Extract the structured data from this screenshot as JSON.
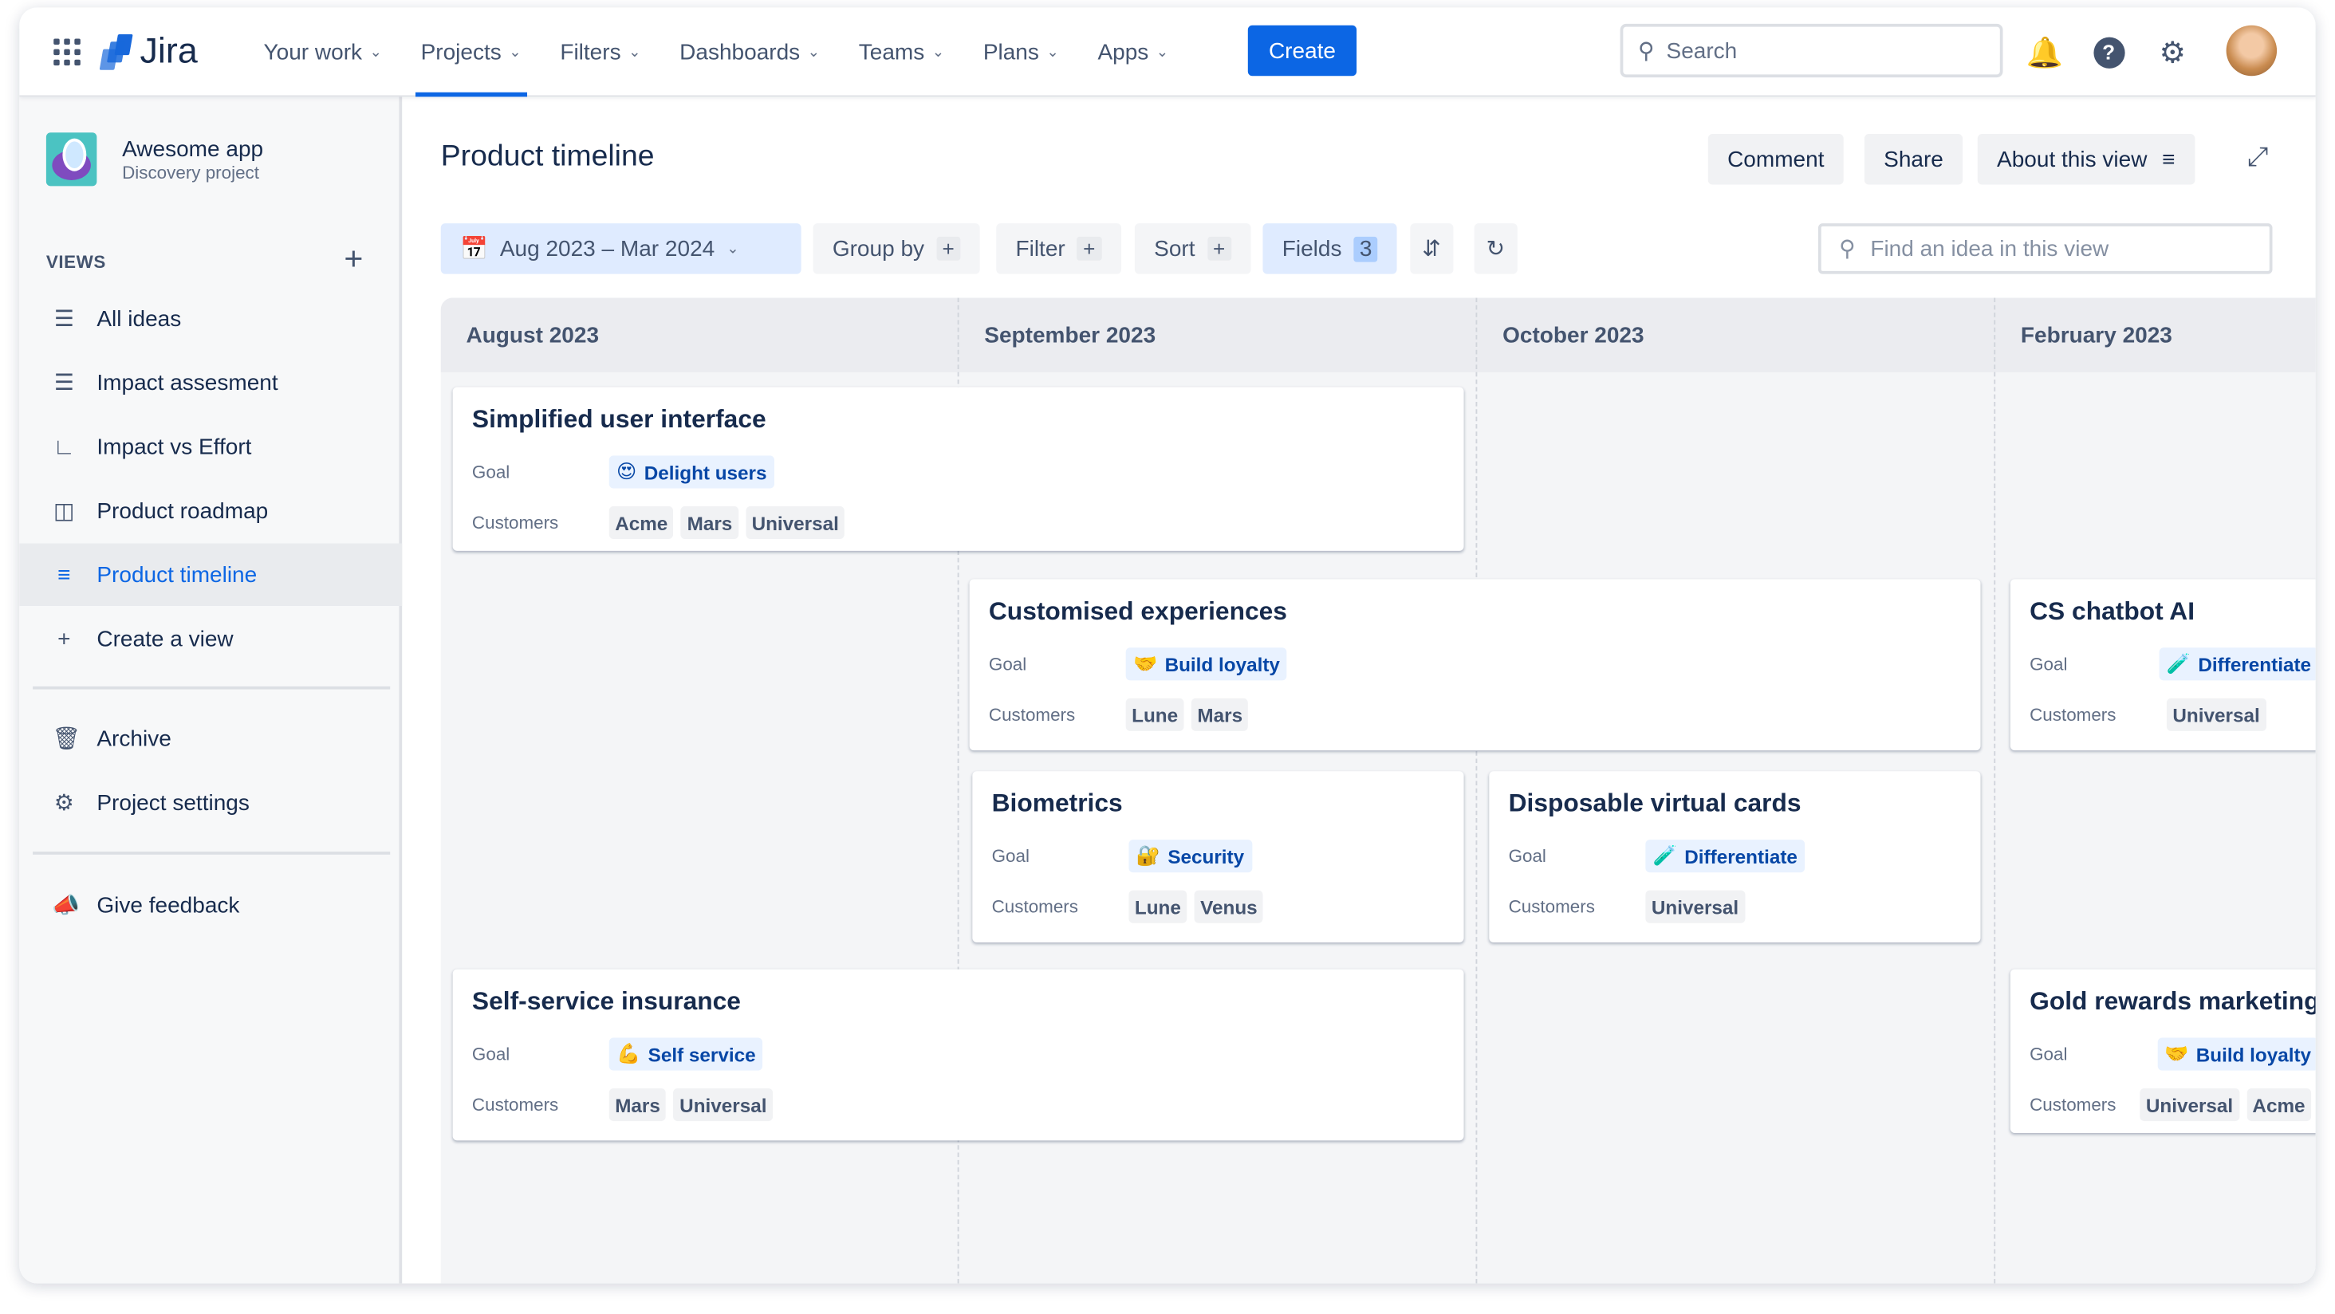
{
  "nav": {
    "app_name": "Jira",
    "menu": [
      "Your work",
      "Projects",
      "Filters",
      "Dashboards",
      "Teams",
      "Plans",
      "Apps"
    ],
    "active_menu": "Projects",
    "create_label": "Create",
    "search_placeholder": "Search"
  },
  "sidebar": {
    "project_name": "Awesome app",
    "project_type": "Discovery project",
    "views_heading": "VIEWS",
    "items": [
      {
        "label": "All ideas",
        "icon": "list-icon"
      },
      {
        "label": "Impact assesment",
        "icon": "list-icon"
      },
      {
        "label": "Impact vs Effort",
        "icon": "matrix-icon"
      },
      {
        "label": "Product roadmap",
        "icon": "board-icon"
      },
      {
        "label": "Product timeline",
        "icon": "timeline-icon",
        "selected": true
      },
      {
        "label": "Create a view",
        "icon": "plus-icon"
      }
    ],
    "secondary": [
      {
        "label": "Archive",
        "icon": "trash-icon"
      },
      {
        "label": "Project settings",
        "icon": "gear-icon"
      }
    ],
    "feedback": {
      "label": "Give feedback",
      "icon": "megaphone-icon"
    }
  },
  "header": {
    "title": "Product timeline",
    "comment": "Comment",
    "share": "Share",
    "about": "About this view"
  },
  "toolbar": {
    "date_range": "Aug 2023 – Mar 2024",
    "group_by": "Group by",
    "filter": "Filter",
    "sort": "Sort",
    "fields": "Fields",
    "fields_count": "3",
    "find_placeholder": "Find an idea in this view"
  },
  "timeline": {
    "months": [
      "August 2023",
      "September 2023",
      "October 2023",
      "February 2023"
    ],
    "goal_label": "Goal",
    "customers_label": "Customers",
    "cards": [
      {
        "title": "Simplified user interface",
        "goal_emoji": "😍",
        "goal": "Delight users",
        "customers": [
          "Acme",
          "Mars",
          "Universal"
        ]
      },
      {
        "title": "Customised experiences",
        "goal_emoji": "🤝",
        "goal": "Build loyalty",
        "customers": [
          "Lune",
          "Mars"
        ]
      },
      {
        "title": "CS chatbot AI",
        "goal_emoji": "🧪",
        "goal": "Differentiate",
        "customers": [
          "Universal"
        ]
      },
      {
        "title": "Biometrics",
        "goal_emoji": "🔐",
        "goal": "Security",
        "customers": [
          "Lune",
          "Venus"
        ]
      },
      {
        "title": "Disposable virtual cards",
        "goal_emoji": "🧪",
        "goal": "Differentiate",
        "customers": [
          "Universal"
        ]
      },
      {
        "title": "Self-service insurance",
        "goal_emoji": "💪",
        "goal": "Self service",
        "customers": [
          "Mars",
          "Universal"
        ]
      },
      {
        "title": "Gold rewards marketing",
        "goal_emoji": "🤝",
        "goal": "Build loyalty",
        "customers": [
          "Universal",
          "Acme"
        ]
      }
    ]
  },
  "colors": {
    "brand": "#0c66e4",
    "selected_bg": "#e9ebee",
    "goal_bg": "#e9f2ff"
  }
}
